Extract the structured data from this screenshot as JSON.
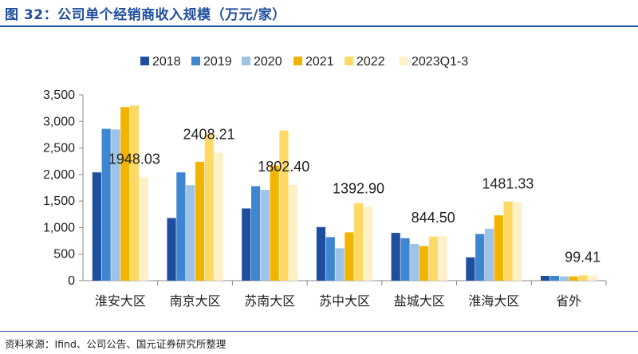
{
  "header": {
    "title": "图 32：公司单个经销商收入规模（万元/家）"
  },
  "footer": {
    "source": "资料来源：Ifind、公司公告、国元证券研究所整理"
  },
  "chart_data": {
    "type": "bar",
    "title": "公司单个经销商收入规模（万元/家）",
    "categories": [
      "淮安大区",
      "南京大区",
      "苏南大区",
      "苏中大区",
      "盐城大区",
      "淮海大区",
      "省外"
    ],
    "series": [
      {
        "name": "2018",
        "color": "#1f4e9e",
        "values": [
          2040,
          1180,
          1360,
          1010,
          900,
          440,
          90
        ]
      },
      {
        "name": "2019",
        "color": "#3e86cf",
        "values": [
          2860,
          2040,
          1780,
          820,
          800,
          880,
          90
        ]
      },
      {
        "name": "2020",
        "color": "#9dc3e6",
        "values": [
          2850,
          1800,
          1710,
          610,
          690,
          980,
          80
        ]
      },
      {
        "name": "2021",
        "color": "#f2b400",
        "values": [
          3270,
          2240,
          2170,
          910,
          650,
          1230,
          80
        ]
      },
      {
        "name": "2022",
        "color": "#ffd966",
        "values": [
          3300,
          2760,
          2830,
          1460,
          830,
          1490,
          100
        ]
      },
      {
        "name": "2023Q1-3",
        "color": "#fff0c6",
        "values": [
          1948.03,
          2408.21,
          1802.4,
          1392.9,
          844.5,
          1481.33,
          99.41
        ]
      }
    ],
    "data_labels": [
      "1948.03",
      "2408.21",
      "1802.40",
      "1392.90",
      "844.50",
      "1481.33",
      "99.41"
    ],
    "yticks": [
      "0",
      "500",
      "1,000",
      "1,500",
      "2,000",
      "2,500",
      "3,000",
      "3,500"
    ],
    "ylim": [
      0,
      3500
    ],
    "grid": false,
    "legend": "top"
  }
}
